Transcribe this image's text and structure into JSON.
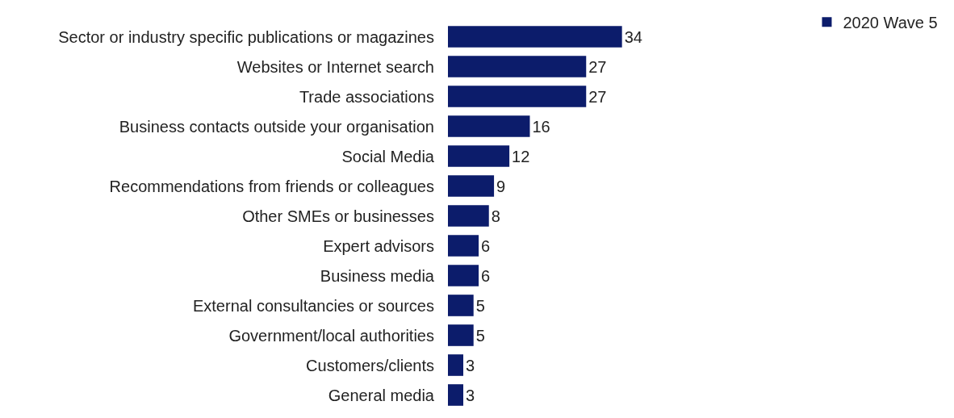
{
  "chart_data": {
    "type": "bar",
    "orientation": "horizontal",
    "categories": [
      "Sector or industry specific publications or magazines",
      "Websites or Internet search",
      "Trade associations",
      "Business contacts outside your organisation",
      "Social Media",
      "Recommendations from friends or colleagues",
      "Other SMEs or businesses",
      "Expert advisors",
      "Business media",
      "External consultancies or sources",
      "Government/local authorities",
      "Customers/clients",
      "General media"
    ],
    "series": [
      {
        "name": "2020 Wave 5",
        "color": "#0c1c6b",
        "values": [
          34,
          27,
          27,
          16,
          12,
          9,
          8,
          6,
          6,
          5,
          5,
          3,
          3
        ]
      }
    ],
    "data_labels": true,
    "legend": "top right"
  }
}
